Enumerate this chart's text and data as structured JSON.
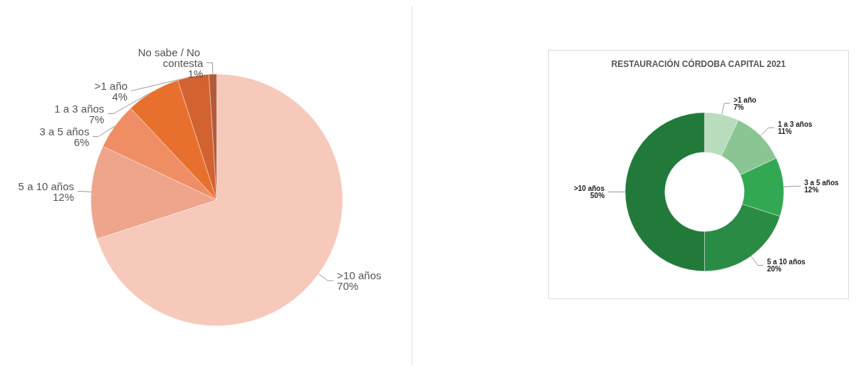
{
  "chart_data": [
    {
      "type": "pie",
      "categories": [
        ">10 años",
        "5 a 10 años",
        "3 a 5 años",
        "1 a 3 años",
        ">1 año",
        "No sabe / No contesta"
      ],
      "values": [
        70,
        12,
        6,
        7,
        4,
        1
      ],
      "colors": [
        "#f6c9bb",
        "#eea58c",
        "#ef8e64",
        "#e8702f",
        "#d2622f",
        "#b5593b"
      ],
      "value_labels": [
        "70%",
        "12%",
        "6%",
        "7%",
        "4%",
        "1%"
      ],
      "legend": false
    },
    {
      "type": "donut",
      "title": "RESTAURACIÓN CÓRDOBA CAPITAL 2021",
      "categories": [
        ">1 año",
        "1 a 3 años",
        "3 a 5 años",
        "5 a 10 años",
        ">10 años"
      ],
      "values": [
        7,
        11,
        12,
        20,
        50
      ],
      "colors": [
        "#b9dcbd",
        "#8cc594",
        "#33a852",
        "#2a8c44",
        "#217a3a"
      ],
      "value_labels": [
        "7%",
        "11%",
        "12%",
        "20%",
        "50%"
      ],
      "legend": false
    }
  ]
}
